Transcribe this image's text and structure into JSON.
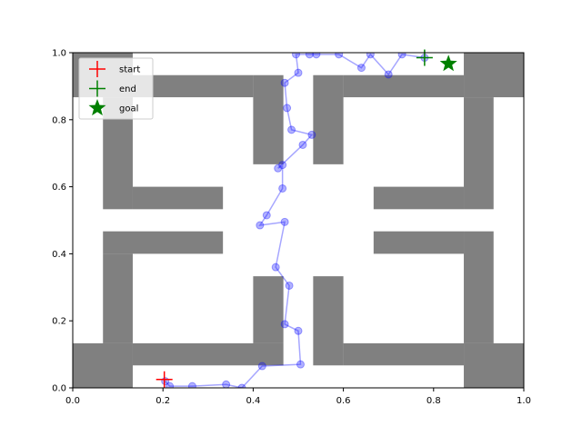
{
  "chart_data": {
    "type": "scatter",
    "title": "",
    "xlabel": "",
    "ylabel": "",
    "xlim": [
      0,
      1
    ],
    "ylim": [
      0,
      1
    ],
    "xticks": [
      "0.0",
      "0.2",
      "0.4",
      "0.6",
      "0.8",
      "1.0"
    ],
    "yticks": [
      "0.0",
      "0.2",
      "0.4",
      "0.6",
      "0.8",
      "1.0"
    ],
    "grid": false,
    "legend_position": "upper-left",
    "colors": {
      "walls": "#808080",
      "path": "#0000ff",
      "start": "#ff0000",
      "end": "#008000",
      "goal": "#008000"
    },
    "walls": [
      {
        "x0": 0.0,
        "x1": 0.133,
        "y0": 0.867,
        "y1": 1.0
      },
      {
        "x0": 0.067,
        "x1": 0.133,
        "y0": 0.533,
        "y1": 0.867
      },
      {
        "x0": 0.133,
        "x1": 0.4,
        "y0": 0.867,
        "y1": 0.933
      },
      {
        "x0": 0.4,
        "x1": 0.467,
        "y0": 0.667,
        "y1": 0.933
      },
      {
        "x0": 0.133,
        "x1": 0.333,
        "y0": 0.533,
        "y1": 0.6
      },
      {
        "x0": 0.533,
        "x1": 0.6,
        "y0": 0.667,
        "y1": 0.933
      },
      {
        "x0": 0.6,
        "x1": 0.867,
        "y0": 0.867,
        "y1": 0.933
      },
      {
        "x0": 0.867,
        "x1": 1.0,
        "y0": 0.867,
        "y1": 1.0
      },
      {
        "x0": 0.867,
        "x1": 0.933,
        "y0": 0.533,
        "y1": 0.867
      },
      {
        "x0": 0.667,
        "x1": 0.867,
        "y0": 0.533,
        "y1": 0.6
      },
      {
        "x0": 0.067,
        "x1": 0.333,
        "y0": 0.4,
        "y1": 0.467
      },
      {
        "x0": 0.067,
        "x1": 0.133,
        "y0": 0.133,
        "y1": 0.4
      },
      {
        "x0": 0.0,
        "x1": 0.133,
        "y0": 0.0,
        "y1": 0.133
      },
      {
        "x0": 0.133,
        "x1": 0.467,
        "y0": 0.067,
        "y1": 0.133
      },
      {
        "x0": 0.4,
        "x1": 0.467,
        "y0": 0.133,
        "y1": 0.333
      },
      {
        "x0": 0.533,
        "x1": 0.6,
        "y0": 0.067,
        "y1": 0.333
      },
      {
        "x0": 0.6,
        "x1": 0.867,
        "y0": 0.067,
        "y1": 0.133
      },
      {
        "x0": 0.867,
        "x1": 1.0,
        "y0": 0.0,
        "y1": 0.133
      },
      {
        "x0": 0.867,
        "x1": 0.933,
        "y0": 0.133,
        "y1": 0.467
      },
      {
        "x0": 0.667,
        "x1": 0.867,
        "y0": 0.4,
        "y1": 0.467
      }
    ],
    "path": {
      "x": [
        0.205,
        0.215,
        0.265,
        0.34,
        0.375,
        0.42,
        0.505,
        0.5,
        0.47,
        0.48,
        0.45,
        0.47,
        0.415,
        0.43,
        0.465,
        0.465,
        0.455,
        0.51,
        0.53,
        0.485,
        0.475,
        0.47,
        0.5,
        0.495,
        0.525,
        0.54,
        0.59,
        0.64,
        0.66,
        0.7,
        0.73,
        0.78
      ],
      "y": [
        0.02,
        0.005,
        0.005,
        0.01,
        0.0,
        0.065,
        0.07,
        0.17,
        0.19,
        0.305,
        0.36,
        0.495,
        0.485,
        0.515,
        0.595,
        0.665,
        0.655,
        0.725,
        0.755,
        0.77,
        0.835,
        0.91,
        0.94,
        0.995,
        0.995,
        0.995,
        0.995,
        0.955,
        0.995,
        0.935,
        0.995,
        0.985
      ]
    },
    "markers": {
      "start": {
        "x": 0.203,
        "y": 0.025
      },
      "end": {
        "x": 0.78,
        "y": 0.985
      },
      "goal": {
        "x": 0.833,
        "y": 0.967
      }
    },
    "legend": [
      {
        "key": "start",
        "label": "start"
      },
      {
        "key": "end",
        "label": "end"
      },
      {
        "key": "goal",
        "label": "goal"
      }
    ]
  }
}
